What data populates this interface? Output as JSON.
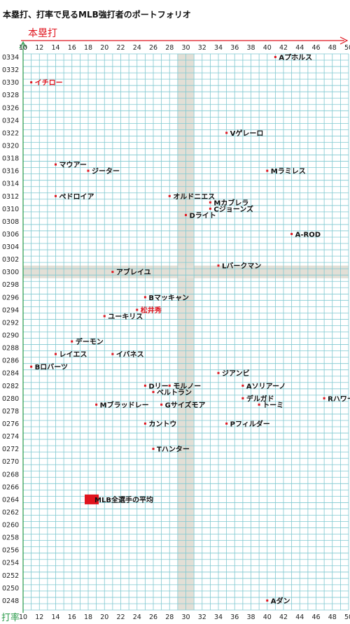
{
  "title": "本塁打、打率で見るMLB強打者のポートフォリオ",
  "chart_data": {
    "type": "scatter",
    "xlabel": "本塁打",
    "ylabel": "打率",
    "xlim": [
      10,
      50
    ],
    "ylim": [
      0.2465,
      0.3345
    ],
    "x_ticks": [
      10,
      12,
      14,
      16,
      18,
      20,
      22,
      24,
      26,
      28,
      30,
      32,
      34,
      36,
      38,
      40,
      42,
      44,
      46,
      48,
      50
    ],
    "y_ticks": [
      "0334",
      "0332",
      "0330",
      "0328",
      "0326",
      "0324",
      "0322",
      "0320",
      "0318",
      "0316",
      "0314",
      "0312",
      "0310",
      "0308",
      "0306",
      "0304",
      "0302",
      "0300",
      "0298",
      "0296",
      "0294",
      "0292",
      "0290",
      "0288",
      "0286",
      "0284",
      "0282",
      "0280",
      "0278",
      "0276",
      "0274",
      "0272",
      "0270",
      "0268",
      "0266",
      "0264",
      "0262",
      "0260",
      "0258",
      "0256",
      "0254",
      "0252",
      "0250",
      "0248"
    ],
    "reference_x": 30,
    "reference_y": 0.3,
    "grid": true,
    "colors": {
      "grid": "#7fc8d0",
      "accent": "#e0141e",
      "axis_y": "#2a9a4a",
      "band": "#e2dfd6"
    },
    "points": [
      {
        "name": "Aプホルス",
        "x": 41,
        "y": 0.334
      },
      {
        "name": "イチロー",
        "x": 11,
        "y": 0.33,
        "highlight": true
      },
      {
        "name": "Vゲレーロ",
        "x": 35,
        "y": 0.322
      },
      {
        "name": "マウアー",
        "x": 14,
        "y": 0.317
      },
      {
        "name": "ジーター",
        "x": 18,
        "y": 0.316
      },
      {
        "name": "Mラミレス",
        "x": 40,
        "y": 0.316
      },
      {
        "name": "ペドロイア",
        "x": 14,
        "y": 0.312
      },
      {
        "name": "オルドニエス",
        "x": 28,
        "y": 0.312
      },
      {
        "name": "Mカブレラ",
        "x": 33,
        "y": 0.311
      },
      {
        "name": "Cジョーンズ",
        "x": 33,
        "y": 0.31
      },
      {
        "name": "Dライト",
        "x": 30,
        "y": 0.309
      },
      {
        "name": "A-ROD",
        "x": 43,
        "y": 0.306
      },
      {
        "name": "Lバークマン",
        "x": 34,
        "y": 0.301
      },
      {
        "name": "アブレイユ",
        "x": 21,
        "y": 0.3
      },
      {
        "name": "Bマッキャン",
        "x": 25,
        "y": 0.296
      },
      {
        "name": "松井秀",
        "x": 24,
        "y": 0.294,
        "highlight": true
      },
      {
        "name": "ユーキリス",
        "x": 20,
        "y": 0.293
      },
      {
        "name": "デーモン",
        "x": 16,
        "y": 0.289
      },
      {
        "name": "レイエス",
        "x": 14,
        "y": 0.287
      },
      {
        "name": "イバネス",
        "x": 21,
        "y": 0.287
      },
      {
        "name": "Bロバーツ",
        "x": 11,
        "y": 0.285
      },
      {
        "name": "ジアンビ",
        "x": 34,
        "y": 0.284
      },
      {
        "name": "Dリー",
        "x": 25,
        "y": 0.282
      },
      {
        "name": "モルノー",
        "x": 28,
        "y": 0.282
      },
      {
        "name": "Aソリアーノ",
        "x": 37,
        "y": 0.282
      },
      {
        "name": "ベルトラン",
        "x": 26,
        "y": 0.281
      },
      {
        "name": "デルガド",
        "x": 37,
        "y": 0.28
      },
      {
        "name": "トーミ",
        "x": 39,
        "y": 0.279
      },
      {
        "name": "Rハワード",
        "x": 47,
        "y": 0.28
      },
      {
        "name": "Mブラッドレー",
        "x": 19,
        "y": 0.279
      },
      {
        "name": "Gサイズモア",
        "x": 27,
        "y": 0.279
      },
      {
        "name": "カントウ",
        "x": 25,
        "y": 0.276
      },
      {
        "name": "Pフィルダー",
        "x": 35,
        "y": 0.276
      },
      {
        "name": "Tハンター",
        "x": 26,
        "y": 0.272
      },
      {
        "name": "MLB全選手の平均",
        "x": 18,
        "y": 0.264,
        "average": true
      },
      {
        "name": "Aダン",
        "x": 40,
        "y": 0.248
      }
    ]
  }
}
